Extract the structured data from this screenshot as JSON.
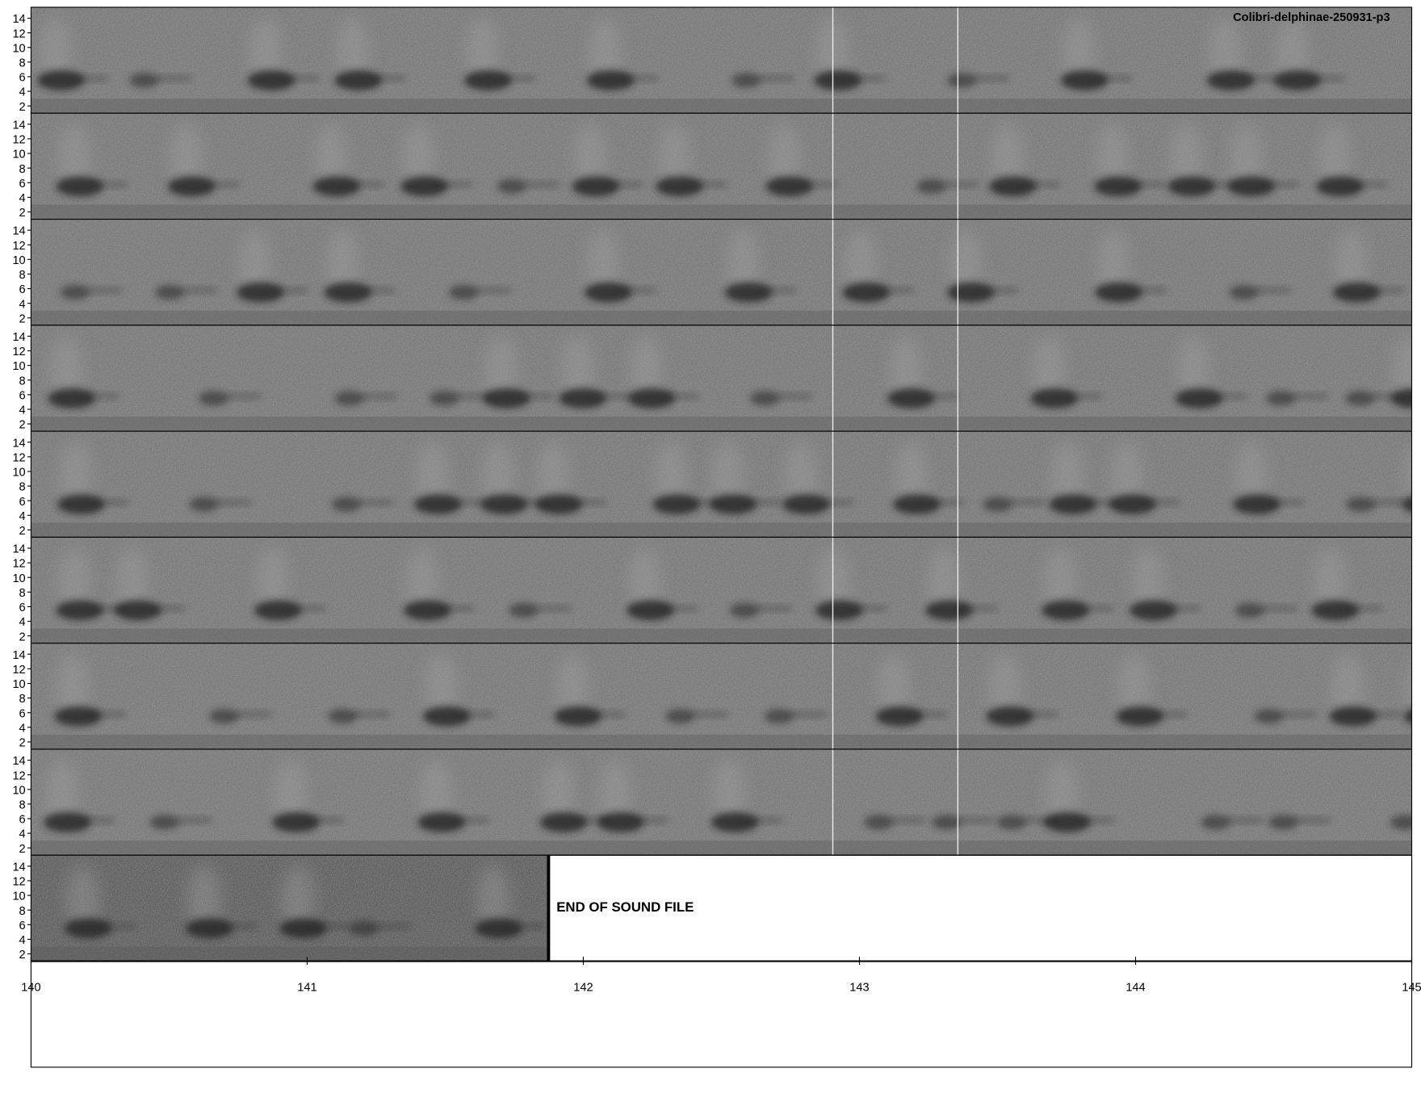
{
  "chart_data": {
    "type": "spectrogram",
    "title": "Colibri-delphinae-250931-p3",
    "ylim": [
      1,
      15.5
    ],
    "yticks": [
      2,
      4,
      6,
      8,
      10,
      12,
      14
    ],
    "xlim": [
      140,
      145
    ],
    "xticks": [
      140,
      141,
      142,
      143,
      144,
      145
    ],
    "end_x": 141.87,
    "annotation": "END OF SOUND FILE"
  }
}
